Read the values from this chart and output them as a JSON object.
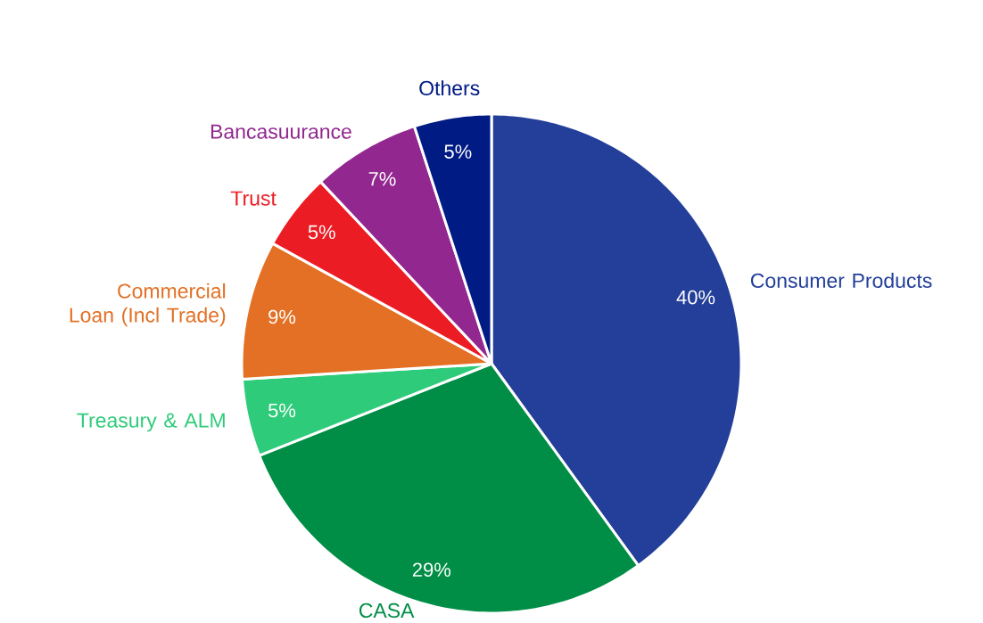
{
  "chart_data": {
    "type": "pie",
    "categories": [
      "Consumer Products",
      "CASA",
      "Treasury & ALM",
      "Commercial Loan (Incl Trade)",
      "Trust",
      "Bancasuurance",
      "Others"
    ],
    "values": [
      40,
      29,
      5,
      9,
      5,
      7,
      5
    ],
    "value_labels": [
      "40%",
      "29%",
      "5%",
      "9%",
      "5%",
      "7%",
      "5%"
    ],
    "colors": [
      "#233f99",
      "#008e46",
      "#2ecc7a",
      "#e37024",
      "#ec1c24",
      "#92278f",
      "#001b84"
    ]
  }
}
